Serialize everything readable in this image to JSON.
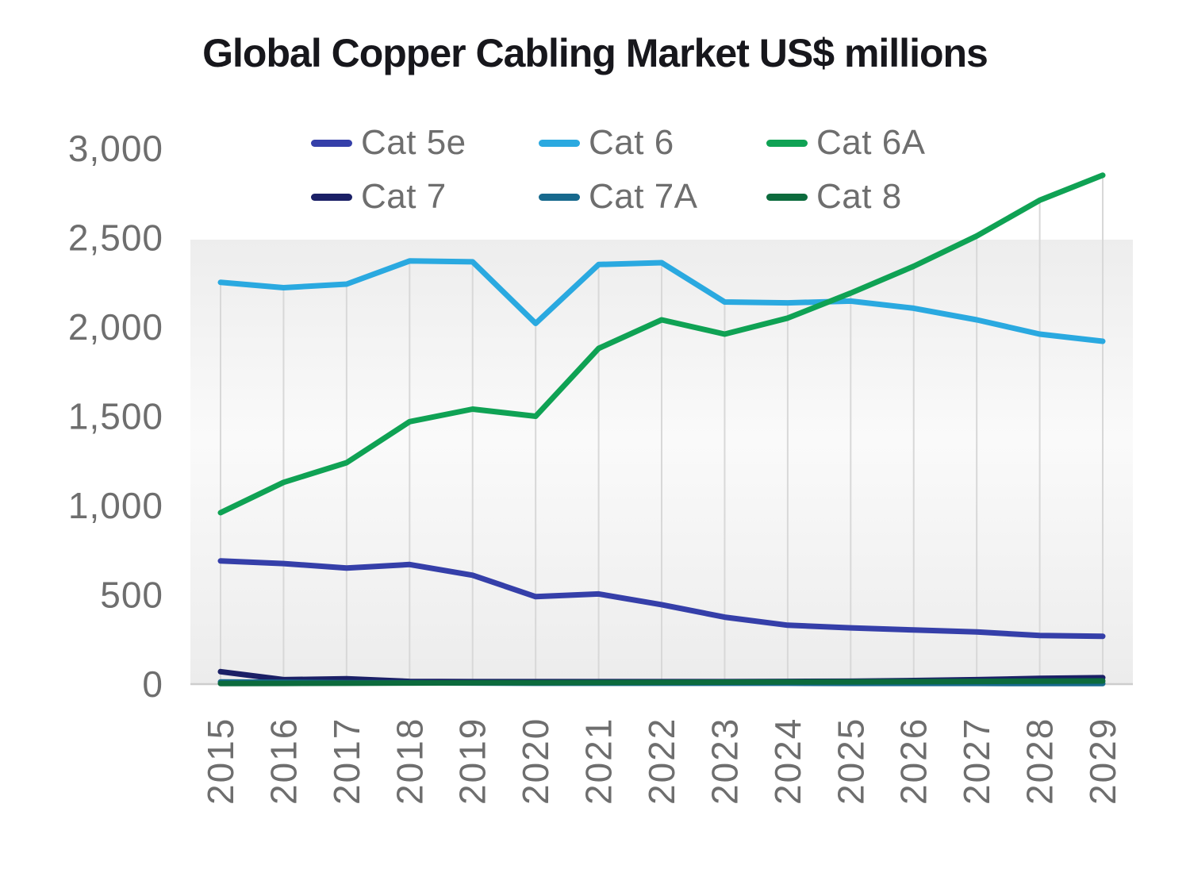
{
  "chart_data": {
    "type": "line",
    "title": "Global Copper Cabling Market US$ millions",
    "xlabel": "",
    "ylabel": "",
    "x_categories": [
      "2015",
      "2016",
      "2017",
      "2018",
      "2019",
      "2020",
      "2021",
      "2022",
      "2023",
      "2024",
      "2025",
      "2026",
      "2027",
      "2028",
      "2029"
    ],
    "ylim": [
      0,
      3000
    ],
    "y_tick_values": [
      0,
      500,
      1000,
      1500,
      2000,
      2500,
      3000
    ],
    "y_tick_labels": [
      "0",
      "500",
      "1,000",
      "1,500",
      "2,000",
      "2,500",
      "3,000"
    ],
    "grid": "vertical-drop-lines",
    "legend_position": "top",
    "series": [
      {
        "name": "Cat 5e",
        "color": "#353fa9",
        "values": [
          690,
          675,
          650,
          670,
          610,
          490,
          505,
          445,
          375,
          330,
          315,
          303,
          292,
          272,
          268
        ]
      },
      {
        "name": "Cat 6",
        "color": "#2aa9e0",
        "values": [
          2250,
          2220,
          2240,
          2370,
          2365,
          2020,
          2350,
          2360,
          2140,
          2135,
          2145,
          2105,
          2040,
          1960,
          1920
        ]
      },
      {
        "name": "Cat 6A",
        "color": "#0fa254",
        "values": [
          960,
          1130,
          1240,
          1470,
          1540,
          1500,
          1880,
          2040,
          1960,
          2050,
          2190,
          2340,
          2510,
          2710,
          2850
        ]
      },
      {
        "name": "Cat 7",
        "color": "#1b2066",
        "values": [
          70,
          25,
          30,
          15,
          14,
          14,
          14,
          14,
          14,
          15,
          16,
          20,
          25,
          32,
          36
        ]
      },
      {
        "name": "Cat 7A",
        "color": "#17698d",
        "values": [
          12,
          10,
          8,
          7,
          6,
          5,
          5,
          5,
          5,
          5,
          4,
          4,
          4,
          3,
          3
        ]
      },
      {
        "name": "Cat 8",
        "color": "#0c6b3d",
        "values": [
          3,
          4,
          5,
          6,
          7,
          8,
          9,
          10,
          11,
          12,
          13,
          14,
          15,
          17,
          18
        ]
      }
    ],
    "style": {
      "plot_bg_top": "#ededed",
      "plot_bg_mid": "#fafafa",
      "plot_bg_bottom": "#ececec",
      "grid_color": "#d8d8d8",
      "axis_line_color": "#cdcdcd",
      "tick_text_color": "#6e6e6e",
      "title_color": "#17171c"
    }
  }
}
